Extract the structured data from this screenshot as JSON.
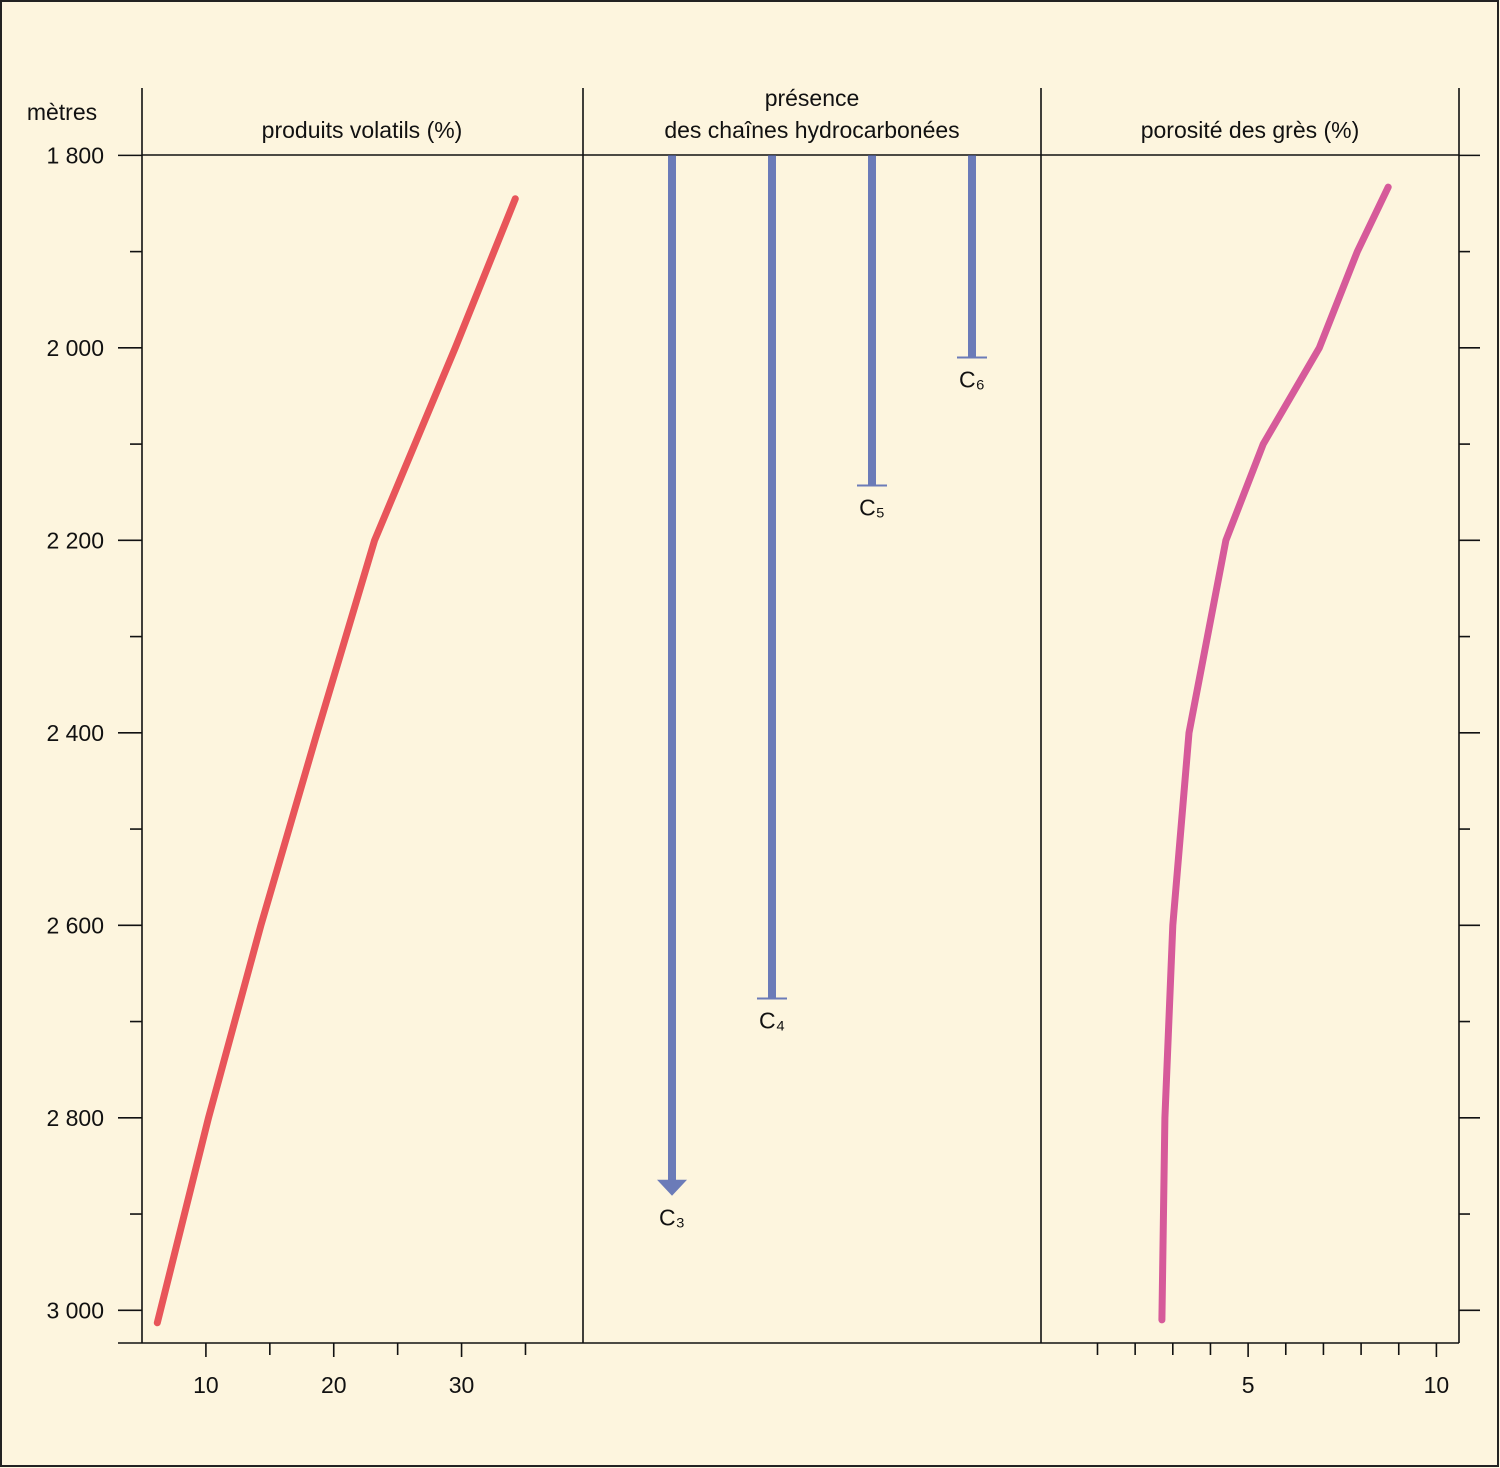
{
  "chart_data": [
    {
      "type": "line",
      "title": "produits volatils (%)",
      "ylabel": "mètres",
      "ylim": [
        1730,
        3034
      ],
      "yticks": [
        {
          "value": 1800,
          "label": "1 800"
        },
        {
          "value": 2000,
          "label": "2 000"
        },
        {
          "value": 2200,
          "label": "2 200"
        },
        {
          "value": 2400,
          "label": "2 400"
        },
        {
          "value": 2600,
          "label": "2 600"
        },
        {
          "value": 2800,
          "label": "2 800"
        },
        {
          "value": 3000,
          "label": "3 000"
        }
      ],
      "yminorticks": [
        1900,
        2100,
        2300,
        2500,
        2700,
        2900
      ],
      "y_inverted": true,
      "xlim": [
        5,
        39.5
      ],
      "xticks": [
        10,
        20,
        30
      ],
      "xminorticks": [
        15,
        25,
        35
      ],
      "series": [
        {
          "color": "#e8555a",
          "x": [
            34.2,
            29.5,
            23.2,
            18.7,
            14.3,
            10.2,
            6.2
          ],
          "values": [
            1845,
            2000,
            2200,
            2400,
            2600,
            2800,
            3013
          ]
        }
      ]
    },
    {
      "type": "range-bar",
      "title": [
        "présence",
        "des chaînes hydrocarbonées"
      ],
      "categories": [
        "C₃",
        "C₄",
        "C₅",
        "C₆"
      ],
      "base": 1800,
      "values": [
        2881,
        2676,
        2143,
        2010
      ],
      "arrows": [
        true,
        false,
        false,
        false
      ],
      "color": "#6b7bb8"
    },
    {
      "type": "line",
      "title": "porosité des grès (%)",
      "xlim": [
        -0.5,
        10.6
      ],
      "xticks": [
        5,
        10
      ],
      "xminorticks": [
        1,
        2,
        3,
        4,
        6,
        7,
        8,
        9
      ],
      "series": [
        {
          "color": "#d65a9a",
          "x": [
            8.72,
            7.9,
            6.89,
            5.4,
            4.41,
            3.43,
            3.0,
            2.79,
            2.71
          ],
          "values": [
            1833,
            1900,
            2000,
            2100,
            2200,
            2400,
            2600,
            2800,
            3010
          ]
        }
      ]
    }
  ]
}
